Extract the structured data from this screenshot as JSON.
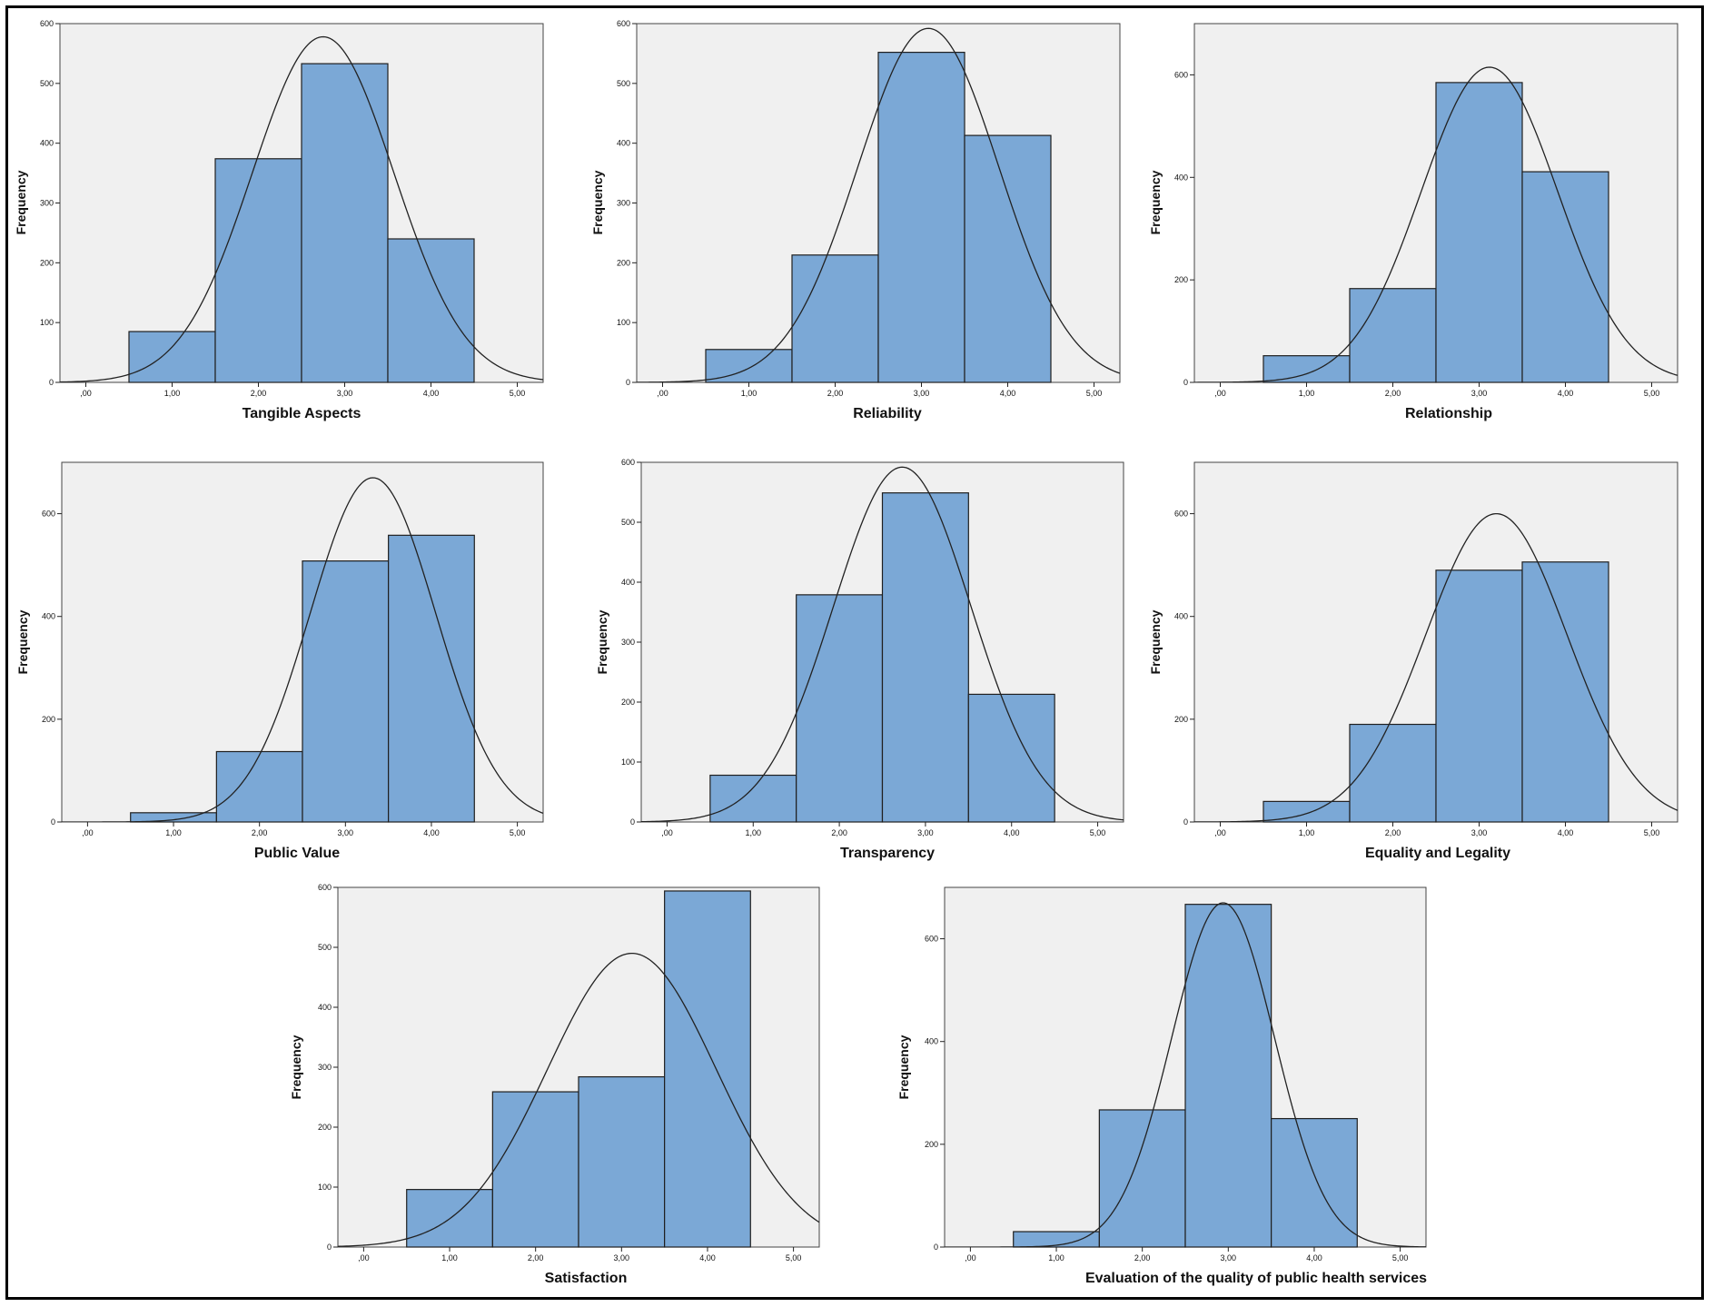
{
  "colors": {
    "bar_fill": "#7ba8d6",
    "bar_stroke": "#1f1f1f",
    "plot_bg": "#f0f0f0",
    "curve": "#222222"
  },
  "chart_data": [
    {
      "type": "bar",
      "xlabel": "Tangible Aspects",
      "ylabel": "Frequency",
      "bin_centers": [
        1,
        2,
        3,
        4
      ],
      "values": [
        85,
        374,
        533,
        240
      ],
      "xlim": [
        -0.3,
        5.3
      ],
      "ylim": [
        0,
        600
      ],
      "xticks": [
        0,
        1,
        2,
        3,
        4,
        5
      ],
      "xtick_labels": [
        ",00",
        "1,00",
        "2,00",
        "3,00",
        "4,00",
        "5,00"
      ],
      "yticks": [
        0,
        100,
        200,
        300,
        400,
        500,
        600
      ],
      "ytick_labels": [
        "0",
        "100",
        "200",
        "300",
        "400",
        "500",
        "600"
      ],
      "normal_curve": {
        "mean": 2.75,
        "peak": 578,
        "sd": 0.82
      }
    },
    {
      "type": "bar",
      "xlabel": "Reliability",
      "ylabel": "Frequency",
      "bin_centers": [
        1,
        2,
        3,
        4
      ],
      "values": [
        55,
        213,
        552,
        413
      ],
      "xlim": [
        -0.3,
        5.3
      ],
      "ylim": [
        0,
        600
      ],
      "xticks": [
        0,
        1,
        2,
        3,
        4,
        5
      ],
      "xtick_labels": [
        ",00",
        "1,00",
        "2,00",
        "3,00",
        "4,00",
        "5,00"
      ],
      "yticks": [
        0,
        100,
        200,
        300,
        400,
        500,
        600
      ],
      "ytick_labels": [
        "0",
        "100",
        "200",
        "300",
        "400",
        "500",
        "600"
      ],
      "normal_curve": {
        "mean": 3.08,
        "peak": 592,
        "sd": 0.82
      }
    },
    {
      "type": "bar",
      "xlabel": "Relationship",
      "ylabel": "Frequency",
      "bin_centers": [
        1,
        2,
        3,
        4
      ],
      "values": [
        52,
        183,
        585,
        411
      ],
      "xlim": [
        -0.3,
        5.3
      ],
      "ylim": [
        0,
        700
      ],
      "xticks": [
        0,
        1,
        2,
        3,
        4,
        5
      ],
      "xtick_labels": [
        ",00",
        "1,00",
        "2,00",
        "3,00",
        "4,00",
        "5,00"
      ],
      "yticks": [
        0,
        200,
        400,
        600
      ],
      "ytick_labels": [
        "0",
        "200",
        "400",
        "600"
      ],
      "normal_curve": {
        "mean": 3.12,
        "peak": 615,
        "sd": 0.79
      }
    },
    {
      "type": "bar",
      "xlabel": "Public Value",
      "ylabel": "Frequency",
      "bin_centers": [
        1,
        2,
        3,
        4
      ],
      "values": [
        18,
        137,
        508,
        558
      ],
      "xlim": [
        -0.3,
        5.3
      ],
      "ylim": [
        0,
        700
      ],
      "xticks": [
        0,
        1,
        2,
        3,
        4,
        5
      ],
      "xtick_labels": [
        ",00",
        "1,00",
        "2,00",
        "3,00",
        "4,00",
        "5,00"
      ],
      "yticks": [
        0,
        200,
        400,
        600
      ],
      "ytick_labels": [
        "0",
        "200",
        "400",
        "600"
      ],
      "normal_curve": {
        "mean": 3.32,
        "peak": 670,
        "sd": 0.73
      }
    },
    {
      "type": "bar",
      "xlabel": "Transparency",
      "ylabel": "Frequency",
      "bin_centers": [
        1,
        2,
        3,
        4
      ],
      "values": [
        78,
        379,
        549,
        213
      ],
      "xlim": [
        -0.3,
        5.3
      ],
      "ylim": [
        0,
        600
      ],
      "xticks": [
        0,
        1,
        2,
        3,
        4,
        5
      ],
      "xtick_labels": [
        ",00",
        "1,00",
        "2,00",
        "3,00",
        "4,00",
        "5,00"
      ],
      "yticks": [
        0,
        100,
        200,
        300,
        400,
        500,
        600
      ],
      "ytick_labels": [
        "0",
        "100",
        "200",
        "300",
        "400",
        "500",
        "600"
      ],
      "normal_curve": {
        "mean": 2.73,
        "peak": 592,
        "sd": 0.8
      }
    },
    {
      "type": "bar",
      "xlabel": "Equality and Legality",
      "ylabel": "Frequency",
      "bin_centers": [
        1,
        2,
        3,
        4
      ],
      "values": [
        40,
        190,
        490,
        506
      ],
      "xlim": [
        -0.3,
        5.3
      ],
      "ylim": [
        0,
        700
      ],
      "xticks": [
        0,
        1,
        2,
        3,
        4,
        5
      ],
      "xtick_labels": [
        ",00",
        "1,00",
        "2,00",
        "3,00",
        "4,00",
        "5,00"
      ],
      "yticks": [
        0,
        200,
        400,
        600
      ],
      "ytick_labels": [
        "0",
        "200",
        "400",
        "600"
      ],
      "normal_curve": {
        "mean": 3.2,
        "peak": 600,
        "sd": 0.82
      }
    },
    {
      "type": "bar",
      "xlabel": "Satisfaction",
      "ylabel": "Frequency",
      "bin_centers": [
        1,
        2,
        3,
        4
      ],
      "values": [
        96,
        259,
        284,
        594
      ],
      "xlim": [
        -0.3,
        5.3
      ],
      "ylim": [
        0,
        600
      ],
      "xticks": [
        0,
        1,
        2,
        3,
        4,
        5
      ],
      "xtick_labels": [
        ",00",
        "1,00",
        "2,00",
        "3,00",
        "4,00",
        "5,00"
      ],
      "yticks": [
        0,
        100,
        200,
        300,
        400,
        500,
        600
      ],
      "ytick_labels": [
        "0",
        "100",
        "200",
        "300",
        "400",
        "500",
        "600"
      ],
      "normal_curve": {
        "mean": 3.12,
        "peak": 490,
        "sd": 0.98
      }
    },
    {
      "type": "bar",
      "xlabel": "Evaluation of the quality of public health services",
      "ylabel": "Frequency",
      "bin_centers": [
        1,
        2,
        3,
        4
      ],
      "values": [
        30,
        267,
        667,
        250
      ],
      "xlim": [
        -0.3,
        5.3
      ],
      "ylim": [
        0,
        700
      ],
      "xticks": [
        0,
        1,
        2,
        3,
        4,
        5
      ],
      "xtick_labels": [
        ",00",
        "1,00",
        "2,00",
        "3,00",
        "4,00",
        "5,00"
      ],
      "yticks": [
        0,
        200,
        400,
        600
      ],
      "ytick_labels": [
        "0",
        "200",
        "400",
        "600"
      ],
      "normal_curve": {
        "mean": 2.94,
        "peak": 670,
        "sd": 0.6
      }
    }
  ]
}
